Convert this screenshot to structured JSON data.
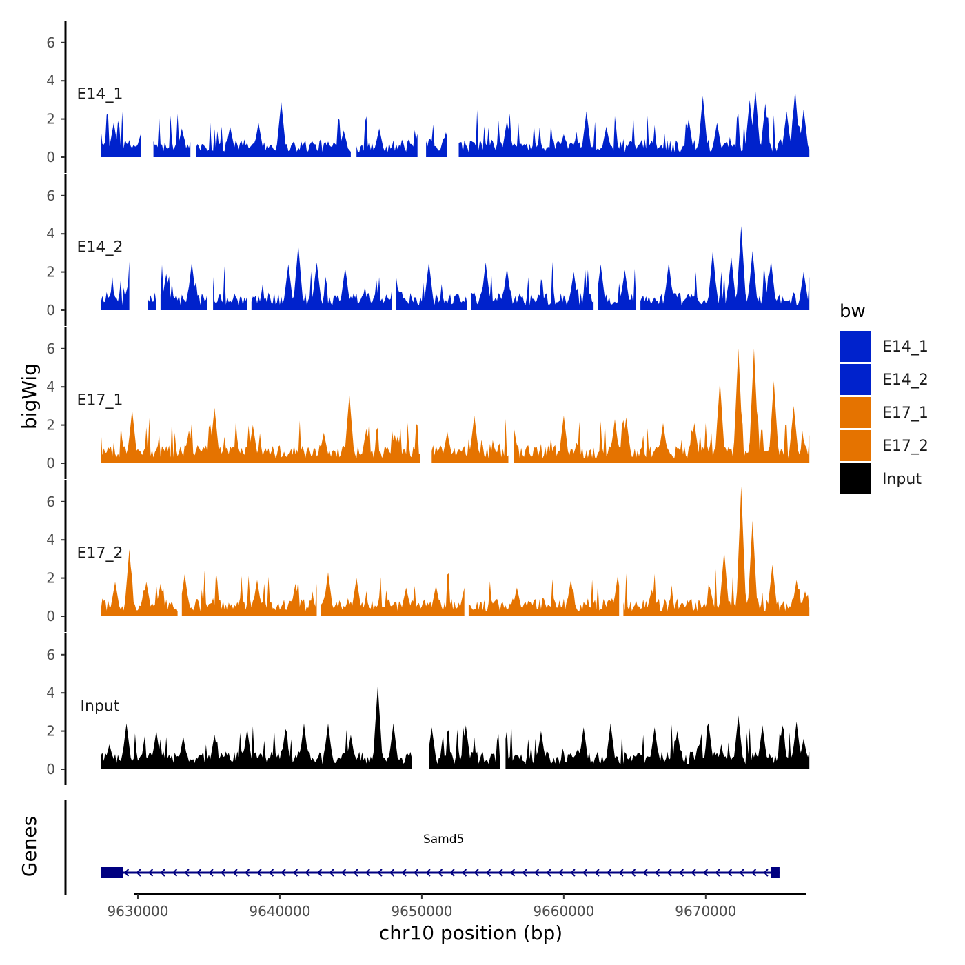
{
  "chart_data": {
    "type": "area",
    "title": "",
    "ylabel": "bigWig",
    "xlabel": "chr10 position (bp)",
    "chromosome": "chr10",
    "xlim": [
      9625000,
      9677000
    ],
    "data_range": [
      9627400,
      9677300
    ],
    "x_ticks": [
      9630000,
      9640000,
      9650000,
      9660000,
      9670000
    ],
    "x_tick_labels": [
      "9630000",
      "9640000",
      "9650000",
      "9660000",
      "9670000"
    ],
    "ylim": [
      0,
      7
    ],
    "y_ticks": [
      0,
      2,
      4,
      6
    ],
    "y_tick_labels": [
      "0",
      "2",
      "4",
      "6"
    ],
    "series": [
      {
        "name": "E14_1",
        "color": "#0022CC",
        "peaks": [
          [
            9627700,
            0.8
          ],
          [
            9628300,
            1.8
          ],
          [
            9630200,
            1.2
          ],
          [
            9633100,
            1.5
          ],
          [
            9636500,
            1.6
          ],
          [
            9638500,
            1.8
          ],
          [
            9640100,
            2.9
          ],
          [
            9644500,
            1.4
          ],
          [
            9647000,
            1.5
          ],
          [
            9649800,
            1.6
          ],
          [
            9651700,
            1.3
          ],
          [
            9656000,
            1.9
          ],
          [
            9660000,
            1.2
          ],
          [
            9661600,
            2.4
          ],
          [
            9663000,
            1.6
          ],
          [
            9668800,
            2.0
          ],
          [
            9669800,
            3.2
          ],
          [
            9670800,
            1.8
          ],
          [
            9673100,
            3.0
          ],
          [
            9673500,
            3.5
          ],
          [
            9674200,
            2.8
          ],
          [
            9675700,
            2.4
          ],
          [
            9676300,
            3.5
          ],
          [
            9676900,
            2.5
          ]
        ],
        "gaps": [
          [
            9630300,
            9631000
          ],
          [
            9633800,
            9634000
          ],
          [
            9645100,
            9645300
          ],
          [
            9649800,
            9650200
          ],
          [
            9651900,
            9652500
          ]
        ]
      },
      {
        "name": "E14_2",
        "color": "#0022CC",
        "peaks": [
          [
            9628200,
            1.2
          ],
          [
            9629300,
            1.3
          ],
          [
            9632000,
            1.9
          ],
          [
            9633800,
            2.5
          ],
          [
            9640600,
            2.4
          ],
          [
            9641300,
            3.4
          ],
          [
            9642600,
            2.5
          ],
          [
            9644600,
            2.2
          ],
          [
            9648100,
            2.3
          ],
          [
            9650500,
            2.5
          ],
          [
            9654500,
            2.5
          ],
          [
            9656000,
            2.2
          ],
          [
            9660700,
            2.0
          ],
          [
            9662600,
            2.4
          ],
          [
            9664300,
            2.1
          ],
          [
            9667400,
            2.5
          ],
          [
            9670500,
            3.1
          ],
          [
            9671800,
            2.8
          ],
          [
            9672500,
            4.4
          ],
          [
            9673300,
            3.1
          ],
          [
            9674600,
            2.6
          ],
          [
            9676900,
            2.0
          ]
        ],
        "gaps": [
          [
            9629500,
            9630600
          ],
          [
            9631400,
            9631500
          ],
          [
            9635000,
            9635200
          ],
          [
            9637800,
            9637900
          ],
          [
            9648000,
            9648100
          ],
          [
            9653300,
            9653400
          ],
          [
            9662200,
            9662300
          ],
          [
            9665200,
            9665300
          ]
        ]
      },
      {
        "name": "E17_1",
        "color": "#E57300",
        "peaks": [
          [
            9629600,
            2.8
          ],
          [
            9633600,
            1.7
          ],
          [
            9635400,
            2.9
          ],
          [
            9638100,
            2.0
          ],
          [
            9643100,
            1.6
          ],
          [
            9644900,
            3.6
          ],
          [
            9646100,
            1.8
          ],
          [
            9648300,
            1.4
          ],
          [
            9651800,
            1.6
          ],
          [
            9653700,
            2.5
          ],
          [
            9656500,
            1.8
          ],
          [
            9660000,
            2.5
          ],
          [
            9663600,
            2.3
          ],
          [
            9664400,
            2.4
          ],
          [
            9667000,
            2.1
          ],
          [
            9669200,
            2.1
          ],
          [
            9671000,
            4.3
          ],
          [
            9672300,
            6.0
          ],
          [
            9673400,
            6.0
          ],
          [
            9674800,
            4.3
          ],
          [
            9676200,
            3.0
          ],
          [
            9676900,
            1.2
          ]
        ],
        "gaps": [
          [
            9650000,
            9650600
          ],
          [
            9656200,
            9656400
          ]
        ]
      },
      {
        "name": "E17_2",
        "color": "#E57300",
        "peaks": [
          [
            9628400,
            1.8
          ],
          [
            9629400,
            3.5
          ],
          [
            9630600,
            1.8
          ],
          [
            9631600,
            1.7
          ],
          [
            9633300,
            2.2
          ],
          [
            9638400,
            1.9
          ],
          [
            9641100,
            1.7
          ],
          [
            9643400,
            2.3
          ],
          [
            9645400,
            2.0
          ],
          [
            9648900,
            1.5
          ],
          [
            9651000,
            1.6
          ],
          [
            9653000,
            1.5
          ],
          [
            9656700,
            1.5
          ],
          [
            9660500,
            1.9
          ],
          [
            9663800,
            2.1
          ],
          [
            9666200,
            1.4
          ],
          [
            9670300,
            1.5
          ],
          [
            9671300,
            3.4
          ],
          [
            9672500,
            6.8
          ],
          [
            9673300,
            5.0
          ],
          [
            9674700,
            2.7
          ],
          [
            9676400,
            1.9
          ],
          [
            9677000,
            1.3
          ]
        ],
        "gaps": [
          [
            9632900,
            9633000
          ],
          [
            9642700,
            9642800
          ],
          [
            9653100,
            9653200
          ],
          [
            9664000,
            9664100
          ]
        ]
      },
      {
        "name": "Input",
        "color": "#000000",
        "peaks": [
          [
            9628000,
            1.3
          ],
          [
            9629200,
            2.4
          ],
          [
            9631300,
            2.0
          ],
          [
            9633200,
            1.7
          ],
          [
            9635400,
            1.8
          ],
          [
            9637700,
            2.1
          ],
          [
            9640400,
            2.1
          ],
          [
            9641700,
            2.4
          ],
          [
            9643400,
            2.4
          ],
          [
            9645000,
            1.8
          ],
          [
            9646900,
            4.4
          ],
          [
            9648000,
            2.4
          ],
          [
            9650700,
            2.2
          ],
          [
            9653100,
            2.3
          ],
          [
            9655800,
            2.1
          ],
          [
            9658400,
            2.0
          ],
          [
            9661400,
            2.2
          ],
          [
            9663300,
            2.4
          ],
          [
            9666400,
            2.2
          ],
          [
            9668000,
            2.0
          ],
          [
            9670200,
            2.4
          ],
          [
            9672300,
            2.8
          ],
          [
            9674000,
            2.3
          ],
          [
            9675400,
            2.3
          ],
          [
            9676400,
            2.5
          ],
          [
            9676900,
            1.6
          ]
        ],
        "gaps": [
          [
            9649400,
            9650400
          ],
          [
            9655600,
            9655800
          ]
        ]
      }
    ],
    "genes": [
      {
        "name": "Samd5",
        "start": 9627400,
        "end": 9675200,
        "strand": "-"
      }
    ],
    "genes_label": "Genes",
    "legend_title": "bw",
    "legend_position": "right",
    "legend": [
      {
        "label": "E14_1",
        "color": "#0022CC"
      },
      {
        "label": "E14_2",
        "color": "#0022CC"
      },
      {
        "label": "E17_1",
        "color": "#E57300"
      },
      {
        "label": "E17_2",
        "color": "#E57300"
      },
      {
        "label": "Input",
        "color": "#000000"
      }
    ],
    "gene_color": "#000080"
  }
}
